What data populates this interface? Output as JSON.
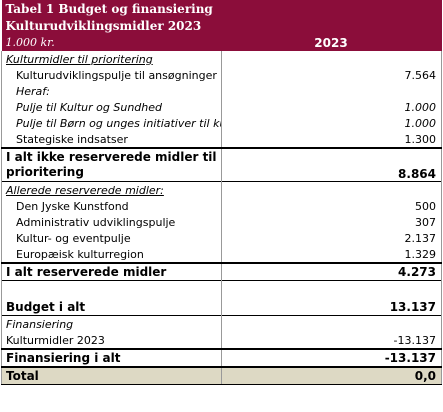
{
  "header": {
    "title_line1": "Tabel 1 Budget og finansiering",
    "title_line2": "Kulturudviklingsmidler 2023",
    "unit": "1.000 kr.",
    "year": "2023"
  },
  "rows": [
    {
      "label": "Kulturmidler til prioritering"
    },
    {
      "label": "Kulturudviklingspulje til ansøgninger",
      "value": "7.564"
    },
    {
      "label": "Heraf:"
    },
    {
      "label": "Pulje til Kultur og Sundhed",
      "value": "1.000"
    },
    {
      "label": "Pulje til Børn og unges initiativer til kultur",
      "value": "1.000"
    },
    {
      "label": "Stategiske indsatser",
      "value": "1.300"
    },
    {
      "label": "I alt ikke reserverede midler til prioritering",
      "value": "8.864"
    },
    {
      "label": "Allerede reserverede midler:"
    },
    {
      "label": "Den Jyske Kunstfond",
      "value": "500"
    },
    {
      "label": "Administrativ udviklingspulje",
      "value": "307"
    },
    {
      "label": "Kultur- og eventpulje",
      "value": "2.137"
    },
    {
      "label": "Europæisk kulturregion",
      "value": "1.329"
    },
    {
      "label": "I alt reserverede midler",
      "value": "4.273"
    },
    {
      "label": "Budget i alt",
      "value": "13.137"
    },
    {
      "label": "Finansiering"
    },
    {
      "label": "Kulturmidler 2023",
      "value": "-13.137"
    },
    {
      "label": "Finansiering i alt",
      "value": "-13.137"
    },
    {
      "label": "Total",
      "value": "0,0"
    }
  ]
}
